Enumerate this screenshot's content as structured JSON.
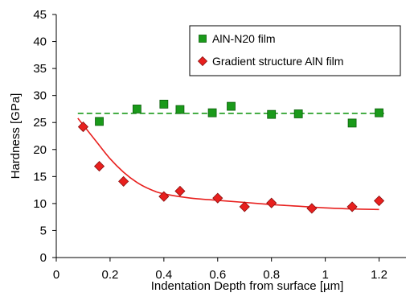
{
  "chart_data": {
    "type": "scatter",
    "xlabel": "Indentation Depth from surface [µm]",
    "ylabel": "Hardness [GPa]",
    "xlim": [
      0,
      1.3
    ],
    "ylim": [
      0,
      45
    ],
    "xticks": [
      0,
      0.2,
      0.4,
      0.6,
      0.8,
      1.0,
      1.2
    ],
    "xtick_labels": [
      "0",
      "0.2",
      "0.4",
      "0.6",
      "0.8",
      "1",
      "1.2"
    ],
    "yticks": [
      0,
      5,
      10,
      15,
      20,
      25,
      30,
      35,
      40,
      45
    ],
    "ytick_labels": [
      "0",
      "5",
      "10",
      "15",
      "20",
      "25",
      "30",
      "35",
      "40",
      "45"
    ],
    "grid": false,
    "legend_position": "top-right",
    "series": [
      {
        "name": "AlN-N20 film",
        "marker": "square",
        "color": "#1a9a1a",
        "x": [
          0.16,
          0.3,
          0.4,
          0.46,
          0.58,
          0.65,
          0.8,
          0.9,
          1.1,
          1.2
        ],
        "y": [
          25.2,
          27.5,
          28.4,
          27.4,
          26.8,
          28.0,
          26.5,
          26.6,
          24.9,
          26.8
        ],
        "fit": {
          "style": "dashed",
          "color": "#1a9a1a",
          "x": [
            0.08,
            1.23
          ],
          "y": [
            26.7,
            26.7
          ]
        }
      },
      {
        "name": "Gradient structure AlN film",
        "marker": "diamond",
        "color": "#e8201e",
        "x": [
          0.1,
          0.16,
          0.25,
          0.4,
          0.46,
          0.6,
          0.7,
          0.8,
          0.95,
          1.1,
          1.2
        ],
        "y": [
          24.2,
          16.9,
          14.1,
          11.3,
          12.3,
          11.0,
          9.4,
          10.1,
          9.1,
          9.4,
          10.5
        ],
        "fit": {
          "style": "solid",
          "color": "#e8201e",
          "x": [
            0.08,
            0.15,
            0.2,
            0.25,
            0.3,
            0.35,
            0.4,
            0.5,
            0.6,
            0.7,
            0.8,
            0.9,
            1.0,
            1.1,
            1.2
          ],
          "y": [
            25.8,
            21.4,
            18.3,
            15.8,
            13.9,
            12.6,
            11.8,
            11.0,
            10.6,
            10.2,
            9.8,
            9.5,
            9.2,
            9.0,
            8.9
          ]
        }
      }
    ]
  }
}
